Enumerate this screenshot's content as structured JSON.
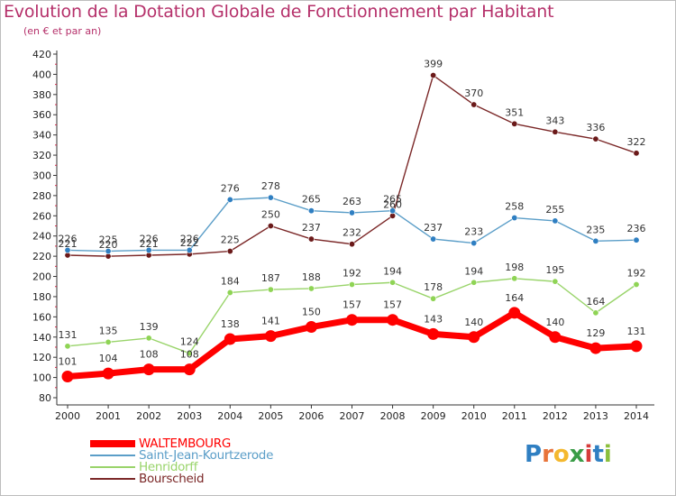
{
  "title": "Evolution de la Dotation Globale de Fonctionnement par Habitant",
  "subtitle": "(en € et par an)",
  "logo": {
    "letters": [
      {
        "ch": "P",
        "color": "#2f7fc2"
      },
      {
        "ch": "r",
        "color": "#e8743a"
      },
      {
        "ch": "o",
        "color": "#f4b82e"
      },
      {
        "ch": "x",
        "color": "#3a9c47"
      },
      {
        "ch": "i",
        "color": "#d63b3b"
      },
      {
        "ch": "t",
        "color": "#2f7fc2"
      },
      {
        "ch": "i",
        "color": "#8bbf3c"
      }
    ]
  },
  "chart_data": {
    "type": "line",
    "x": [
      "2000",
      "2001",
      "2002",
      "2003",
      "2004",
      "2005",
      "2006",
      "2007",
      "2008",
      "2009",
      "2010",
      "2011",
      "2012",
      "2013",
      "2014"
    ],
    "ylim": [
      80,
      420
    ],
    "ytick_step": 20,
    "grid": false,
    "series": [
      {
        "name": "WALTEMBOURG",
        "color": "#ff0000",
        "marker_fill": "#ff0000",
        "values": [
          101,
          104,
          108,
          108,
          138,
          141,
          150,
          157,
          157,
          143,
          140,
          164,
          140,
          129,
          131
        ]
      },
      {
        "name": "Saint-Jean-Kourtzerode",
        "color": "#5b9ec8",
        "marker_fill": "#2f7fc2",
        "values": [
          226,
          225,
          226,
          226,
          276,
          278,
          265,
          263,
          265,
          237,
          233,
          258,
          255,
          235,
          236
        ]
      },
      {
        "name": "Henridorff",
        "color": "#99d46a",
        "marker_fill": "#8fd455",
        "values": [
          131,
          135,
          139,
          124,
          184,
          187,
          188,
          192,
          194,
          178,
          194,
          198,
          195,
          164,
          192
        ]
      },
      {
        "name": "Bourscheid",
        "color": "#7b2828",
        "marker_fill": "#6b1a1a",
        "values": [
          221,
          220,
          221,
          222,
          225,
          250,
          237,
          232,
          260,
          399,
          370,
          351,
          343,
          336,
          322
        ]
      }
    ],
    "legend_position": "bottom-left"
  }
}
